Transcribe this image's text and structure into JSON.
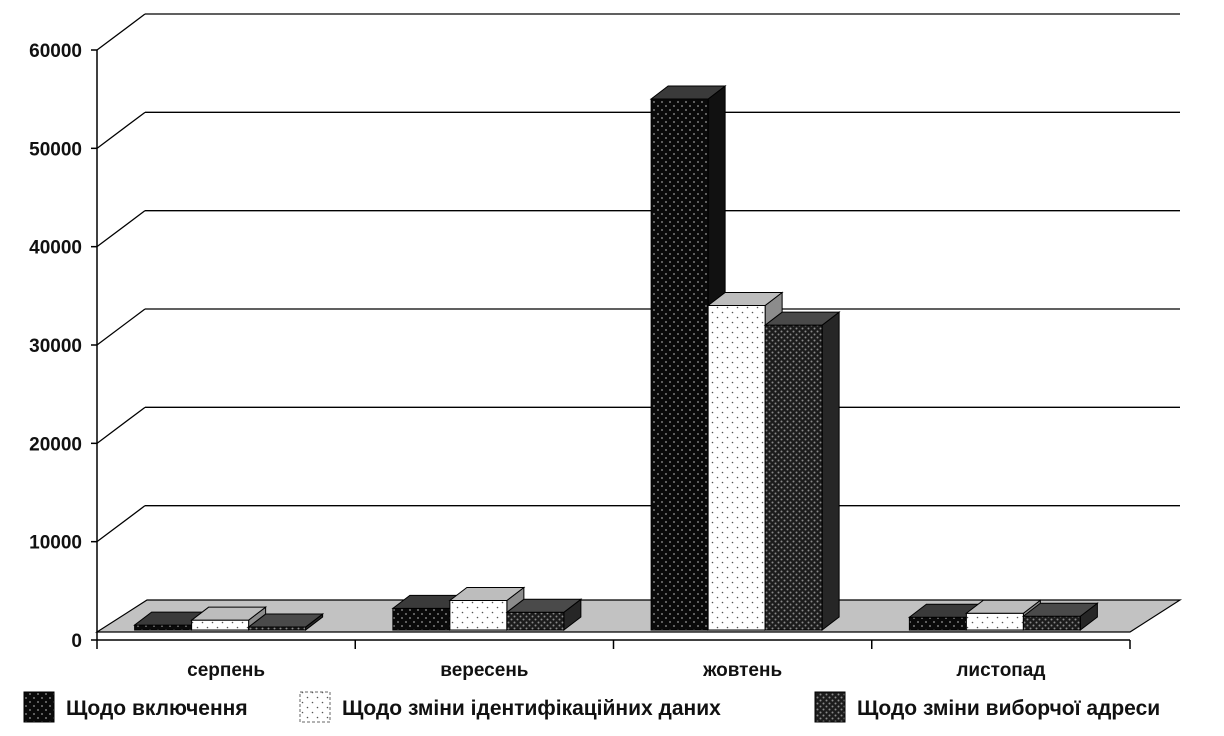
{
  "chart_data": {
    "type": "bar",
    "title": "",
    "xlabel": "",
    "ylabel": "",
    "ylim": [
      0,
      60000
    ],
    "yticks": [
      "0",
      "10000",
      "20000",
      "30000",
      "40000",
      "50000",
      "60000"
    ],
    "grid": true,
    "legend_position": "bottom",
    "categories": [
      "серпень",
      "вересень",
      "жовтень",
      "листопад"
    ],
    "series": [
      {
        "name": "Щодо включення",
        "values": [
          500,
          2200,
          54000,
          1300
        ],
        "pattern": "black-dots"
      },
      {
        "name": "Щодо зміни ідентифікаційних даних",
        "values": [
          1000,
          3000,
          33000,
          1700
        ],
        "pattern": "white-dots"
      },
      {
        "name": "Щодо зміни виборчої адреси",
        "values": [
          300,
          1800,
          31000,
          1400
        ],
        "pattern": "dark-dots"
      }
    ]
  }
}
